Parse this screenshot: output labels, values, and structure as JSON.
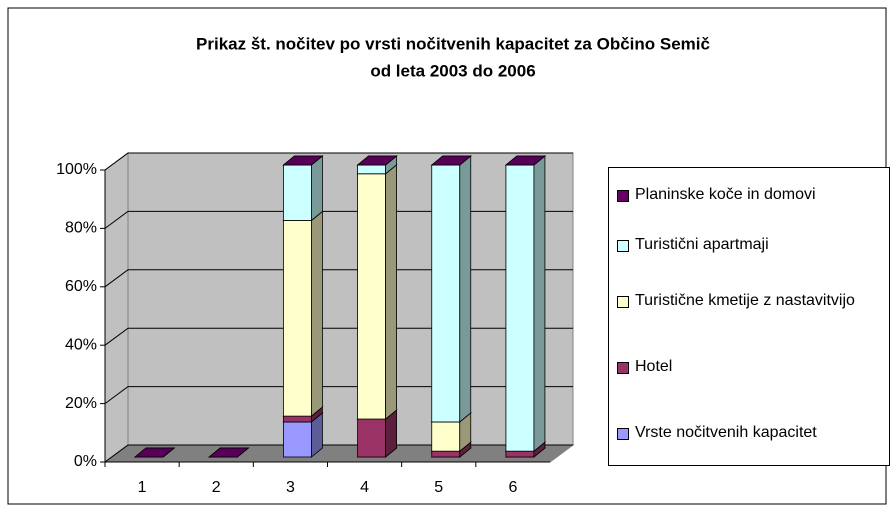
{
  "chart_data": {
    "type": "bar3d_stacked_percent",
    "title": [
      "Prikaz št. nočitev po vrsti nočitvenih kapacitet za Občino Semič",
      "od leta 2003 do 2006"
    ],
    "categories": [
      "1",
      "2",
      "3",
      "4",
      "5",
      "6"
    ],
    "series": [
      {
        "name": "Vrste nočitvenih kapacitet",
        "color": "#9999ff",
        "values": [
          0,
          0,
          12,
          0,
          0,
          0
        ]
      },
      {
        "name": "Hotel",
        "color": "#993366",
        "values": [
          0,
          0,
          2,
          13,
          2,
          2
        ]
      },
      {
        "name": "Turistične kmetije z nastavitvijo",
        "color": "#ffffcc",
        "values": [
          0,
          0,
          67,
          84,
          10,
          0
        ]
      },
      {
        "name": "Turistični apartmaji",
        "color": "#ccffff",
        "values": [
          0,
          0,
          19,
          3,
          88,
          98
        ]
      },
      {
        "name": "Planinske koče in domovi",
        "color": "#660066",
        "values": [
          0,
          0,
          0,
          0,
          0,
          0
        ]
      }
    ],
    "ylim": [
      0,
      100
    ],
    "yticks": [
      {
        "value": 0,
        "label": "0%"
      },
      {
        "value": 20,
        "label": "20%"
      },
      {
        "value": 40,
        "label": "40%"
      },
      {
        "value": 60,
        "label": "60%"
      },
      {
        "value": 80,
        "label": "80%"
      },
      {
        "value": 100,
        "label": "100%"
      }
    ],
    "grid": true,
    "legend": "right"
  }
}
